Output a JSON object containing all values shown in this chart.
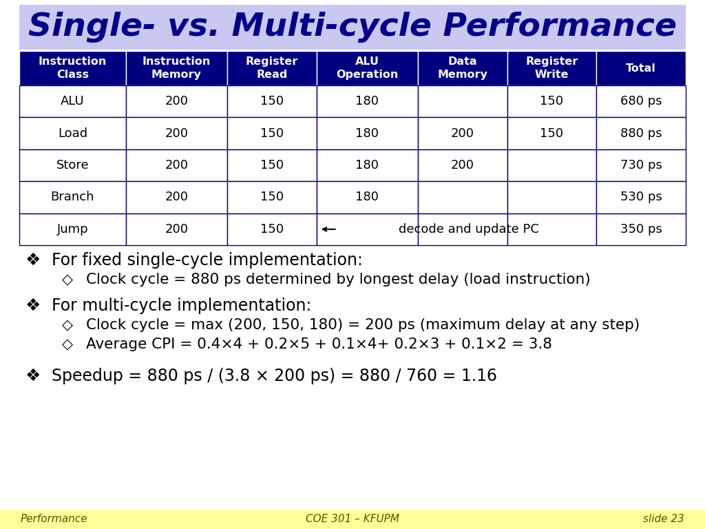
{
  "title": "Single- vs. Multi-cycle Performance",
  "title_bg": "#c8c8f0",
  "title_color": "#00008B",
  "slide_bg": "#ffffff",
  "header_bg": "#000080",
  "header_color": "#ffffff",
  "row_bg": "#ffffff",
  "row_border": "#000080",
  "col_headers": [
    "Instruction\nClass",
    "Instruction\nMemory",
    "Register\nRead",
    "ALU\nOperation",
    "Data\nMemory",
    "Register\nWrite",
    "Total"
  ],
  "table_data": [
    [
      "ALU",
      "200",
      "150",
      "180",
      "",
      "150",
      "680 ps"
    ],
    [
      "Load",
      "200",
      "150",
      "180",
      "200",
      "150",
      "880 ps"
    ],
    [
      "Store",
      "200",
      "150",
      "180",
      "200",
      "",
      "730 ps"
    ],
    [
      "Branch",
      "200",
      "150",
      "180",
      "",
      "",
      "530 ps"
    ],
    [
      "Jump",
      "200",
      "150",
      "",
      "",
      "",
      "350 ps"
    ]
  ],
  "jump_annotation": "decode and update PC",
  "bullets": [
    {
      "level": 0,
      "text": "For fixed single-cycle implementation:"
    },
    {
      "level": 1,
      "text": "Clock cycle = 880 ps determined by longest delay (load instruction)"
    },
    {
      "level": 0,
      "text": "For multi-cycle implementation:"
    },
    {
      "level": 1,
      "text": "Clock cycle = max (200, 150, 180) = 200 ps (maximum delay at any step)"
    },
    {
      "level": 1,
      "text": "Average CPI = 0.4×4 + 0.2×5 + 0.1×4+ 0.2×3 + 0.1×2 = 3.8"
    },
    {
      "level": 0,
      "text": "Speedup = 880 ps / (3.8 × 200 ps) = 880 / 760 = 1.16"
    }
  ],
  "footer_bg": "#ffff99",
  "footer_left": "Performance",
  "footer_center": "COE 301 – KFUPM",
  "footer_right": "slide 23",
  "footer_color": "#555500"
}
